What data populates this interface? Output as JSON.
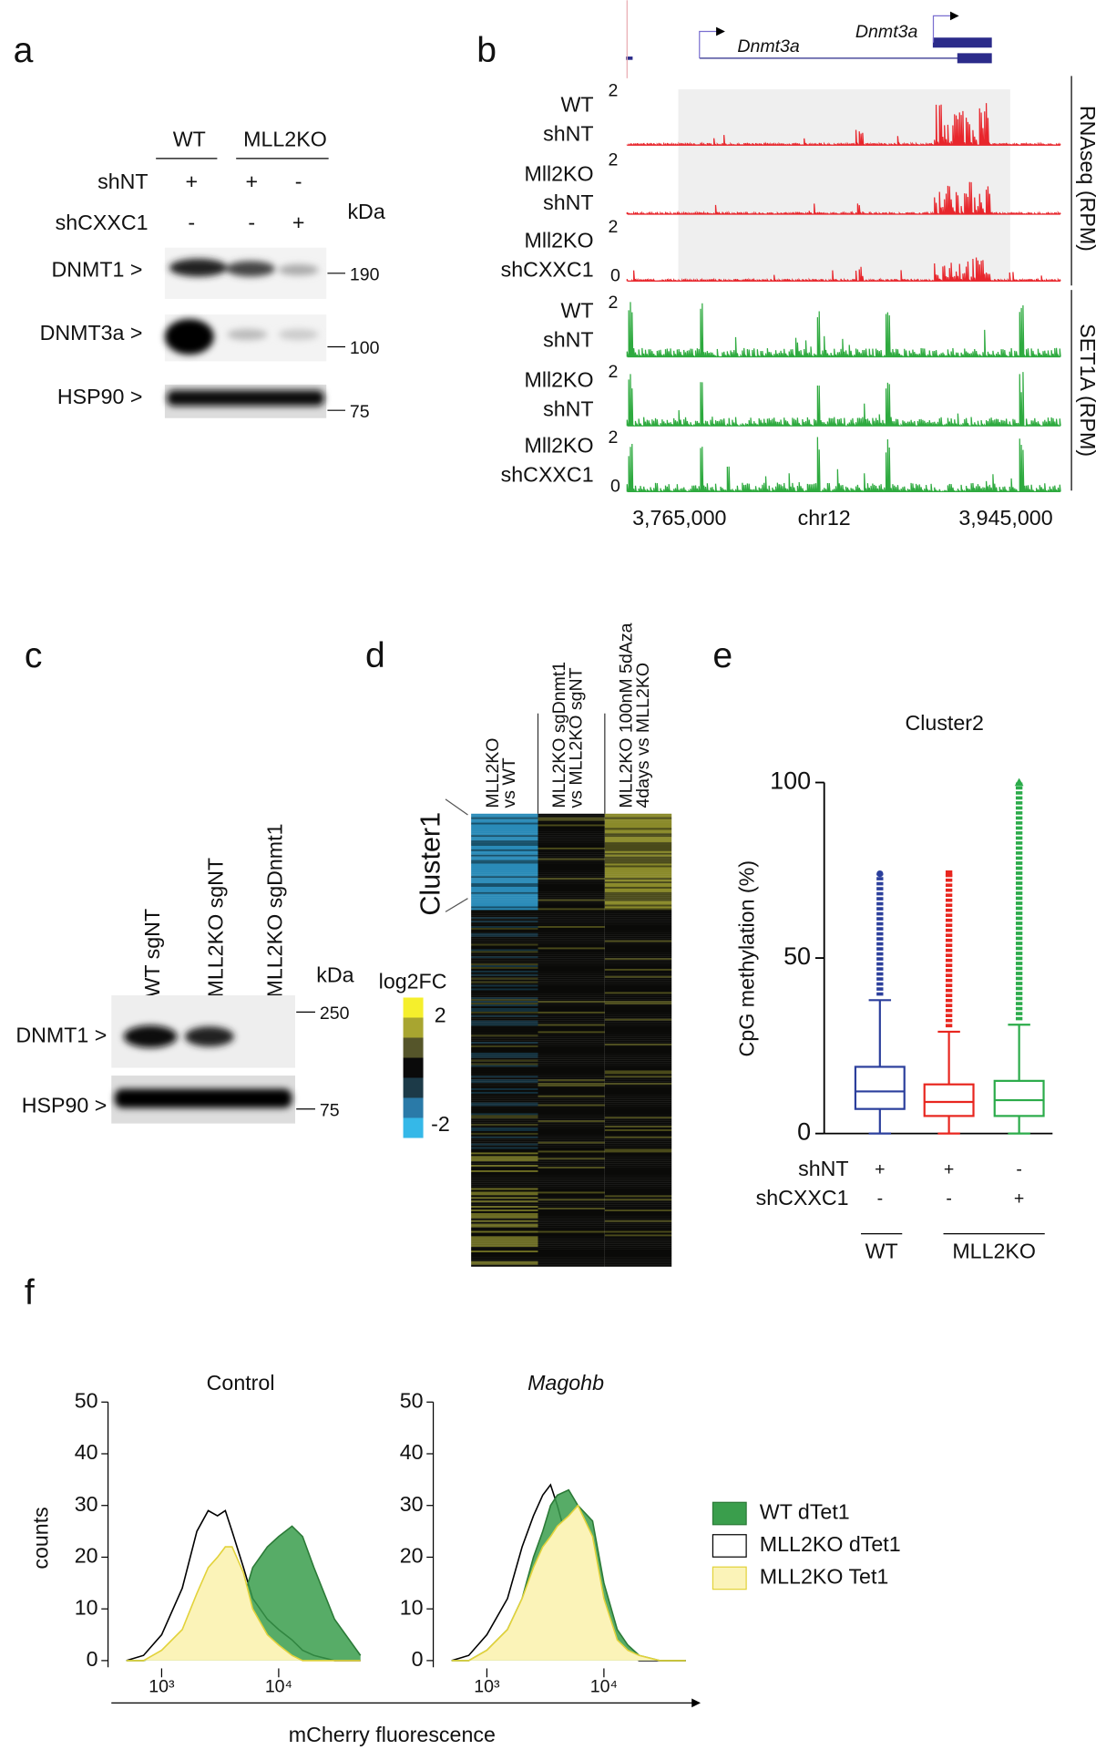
{
  "panel_a": {
    "label": "a",
    "groups": [
      "WT",
      "MLL2KO"
    ],
    "conditions": [
      {
        "name": "shNT",
        "marks": [
          "+",
          "+",
          "-"
        ]
      },
      {
        "name": "shCXXC1",
        "marks": [
          "-",
          "-",
          "+"
        ]
      }
    ],
    "unit": "kDa",
    "blots": [
      {
        "name": "DNMT1 >",
        "marker": "190"
      },
      {
        "name": "DNMT3a >",
        "marker": "100"
      },
      {
        "name": "HSP90 >",
        "marker": "75"
      }
    ]
  },
  "panel_b": {
    "label": "b",
    "genes": [
      "Dnmt3a",
      "Dnmt3a"
    ],
    "rnaseq": {
      "title": "RNAseq (RPM)",
      "tracks": [
        {
          "lines": [
            "WT",
            "shNT"
          ],
          "scale": "2"
        },
        {
          "lines": [
            "Mll2KO",
            "shNT"
          ],
          "scale": "2"
        },
        {
          "lines": [
            "Mll2KO",
            "shCXXC1"
          ],
          "scale": "2",
          "zero": "0"
        }
      ]
    },
    "set1a": {
      "title": "SET1A (RPM)",
      "tracks": [
        {
          "lines": [
            "WT",
            "shNT"
          ],
          "scale": "2"
        },
        {
          "lines": [
            "Mll2KO",
            "shNT"
          ],
          "scale": "2"
        },
        {
          "lines": [
            "Mll2KO",
            "shCXXC1"
          ],
          "scale": "2",
          "zero": "0"
        }
      ]
    },
    "axis_labels": [
      "3,765,000",
      "chr12",
      "3,945,000"
    ]
  },
  "panel_c": {
    "label": "c",
    "lanes": [
      "WT sgNT",
      "MLL2KO sgNT",
      "MLL2KO sgDnmt1"
    ],
    "unit": "kDa",
    "blots": [
      {
        "name": "DNMT1 >",
        "marker": "250"
      },
      {
        "name": "HSP90 >",
        "marker": "75"
      }
    ]
  },
  "panel_d": {
    "label": "d",
    "columns": [
      [
        "MLL2KO",
        "vs WT"
      ],
      [
        "MLL2KO sgDnmt1",
        "vs MLL2KO sgNT"
      ],
      [
        "MLL2KO 100nM 5dAza",
        "4days vs MLL2KO"
      ]
    ],
    "cluster": "Cluster1",
    "colorbar": {
      "title": "log2FC",
      "max": "2",
      "min": "-2"
    }
  },
  "panel_e_label": "e",
  "panel_f_label": "f",
  "chart_data": [
    {
      "type": "box",
      "title": "Cluster2",
      "ylabel": "CpG methylation (%)",
      "ylim": [
        0,
        100
      ],
      "yticks": [
        0,
        50,
        100
      ],
      "series": [
        {
          "color": "#2b3f9c",
          "marker": "circle",
          "values": {
            "whislo": 0,
            "q1": 7,
            "med": 12,
            "q3": 19,
            "whishi": 38,
            "max": 74
          }
        },
        {
          "color": "#e8261f",
          "marker": "square",
          "values": {
            "whislo": 0,
            "q1": 5,
            "med": 9,
            "q3": 14,
            "whishi": 29,
            "max": 74
          }
        },
        {
          "color": "#2bab4a",
          "marker": "triangle",
          "values": {
            "whislo": 0,
            "q1": 5,
            "med": 9.5,
            "q3": 15,
            "whishi": 31,
            "max": 100
          }
        }
      ],
      "conditions": [
        {
          "name": "shNT",
          "values": [
            "+",
            "+",
            "-"
          ]
        },
        {
          "name": "shCXXC1",
          "values": [
            "-",
            "-",
            "+"
          ]
        }
      ],
      "groups": [
        "WT",
        "MLL2KO"
      ]
    },
    {
      "type": "area",
      "xlabel": "mCherry fluorescence",
      "ylabel": "counts",
      "log_x": true,
      "xlim": [
        372,
        138000
      ],
      "xticks": [
        {
          "value": 1000,
          "label": "10³"
        },
        {
          "value": 10000,
          "label": "10⁴"
        }
      ],
      "ylim": [
        0,
        50
      ],
      "yticks": [
        0,
        10,
        20,
        30,
        40,
        50
      ],
      "x": [
        500,
        700,
        1000,
        1500,
        2000,
        2500,
        3000,
        3500,
        4000,
        5000,
        6000,
        8000,
        10000,
        13000,
        16000,
        20000,
        30000,
        50000
      ],
      "series": [
        {
          "name": "WT dTet1",
          "color": "#3a9e4c",
          "line_color": "#2b7a37"
        },
        {
          "name": "MLL2KO dTet1",
          "color": "#ffffff",
          "line_color": "#000000"
        },
        {
          "name": "MLL2KO Tet1",
          "color": "#fbf3b8",
          "line_color": "#e2d23a"
        }
      ],
      "facets": [
        {
          "title": "Control",
          "values": [
            [
              0,
              0,
              1,
              3,
              5,
              6,
              6,
              7,
              8,
              12,
              18,
              22,
              24,
              26,
              24,
              18,
              8,
              1
            ],
            [
              0,
              1,
              5,
              14,
              25,
              29,
              28,
              29,
              25,
              18,
              12,
              8,
              6,
              4,
              2,
              1,
              0,
              0
            ],
            [
              0,
              0,
              2,
              6,
              13,
              18,
              20,
              22,
              22,
              17,
              10,
              5,
              3,
              1,
              0,
              0,
              0,
              0
            ]
          ]
        },
        {
          "title": "Magohb",
          "values": [
            [
              0,
              0,
              2,
              6,
              12,
              20,
              25,
              30,
              32,
              33,
              30,
              27,
              15,
              6,
              3,
              1,
              0,
              0
            ],
            [
              0,
              1,
              5,
              12,
              22,
              28,
              32,
              34,
              30,
              22,
              18,
              10,
              4,
              2,
              1,
              0,
              0,
              0
            ],
            [
              0,
              0,
              2,
              6,
              12,
              18,
              22,
              24,
              26,
              28,
              30,
              24,
              12,
              4,
              2,
              1,
              0,
              0
            ]
          ]
        }
      ]
    }
  ]
}
